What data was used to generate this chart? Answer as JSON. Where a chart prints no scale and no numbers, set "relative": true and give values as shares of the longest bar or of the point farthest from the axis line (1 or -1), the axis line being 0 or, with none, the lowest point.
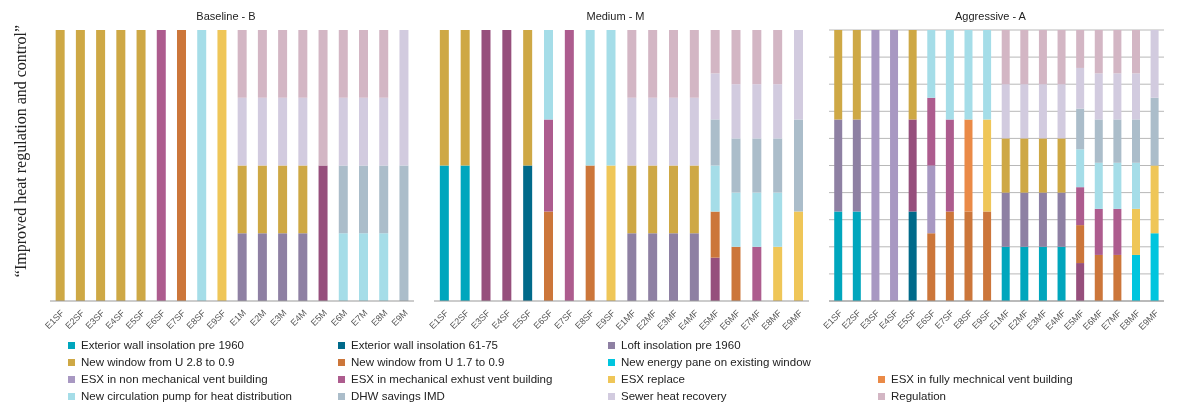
{
  "chart_data": [
    {
      "type": "bar",
      "title": "Baseline - B",
      "ylabel": "“Improved heat regulation and control”",
      "relative": true,
      "stacked": true,
      "grid": false,
      "categories": [
        "E1SF",
        "E2SF",
        "E3SF",
        "E4SF",
        "E5SF",
        "E6SF",
        "E7SF",
        "E8SF",
        "E9SF",
        "E1M",
        "E2M",
        "E3M",
        "E4M",
        "E5M",
        "E6M",
        "E7M",
        "E8M",
        "E9M"
      ],
      "series": [
        {
          "color": "#964f7c",
          "values": [
            null,
            null,
            null,
            null,
            null,
            null,
            null,
            null,
            null,
            null,
            null,
            null,
            null,
            0.5,
            null,
            null,
            null,
            null
          ]
        },
        {
          "color": "#8e80a3",
          "values": [
            null,
            null,
            null,
            null,
            null,
            null,
            null,
            null,
            null,
            0.25,
            0.25,
            0.25,
            0.25,
            null,
            null,
            null,
            null,
            null
          ]
        },
        {
          "color": "#cea845",
          "values": [
            1,
            1,
            1,
            1,
            1,
            null,
            null,
            null,
            null,
            0.25,
            0.25,
            0.25,
            0.25,
            null,
            null,
            null,
            null,
            null
          ]
        },
        {
          "color": "#cc763a",
          "values": [
            null,
            null,
            null,
            null,
            null,
            null,
            1,
            null,
            null,
            null,
            null,
            null,
            null,
            null,
            null,
            null,
            null,
            null
          ]
        },
        {
          "color": "#ad5c8e",
          "values": [
            null,
            null,
            null,
            null,
            null,
            1,
            null,
            null,
            null,
            null,
            null,
            null,
            null,
            null,
            null,
            null,
            null,
            null
          ]
        },
        {
          "color": "#efc658",
          "values": [
            null,
            null,
            null,
            null,
            null,
            null,
            null,
            null,
            1,
            null,
            null,
            null,
            null,
            null,
            null,
            null,
            null,
            null
          ]
        },
        {
          "color": "#a5dde8",
          "values": [
            null,
            null,
            null,
            null,
            null,
            null,
            null,
            1,
            null,
            null,
            null,
            null,
            null,
            null,
            0.25,
            0.25,
            0.25,
            null
          ]
        },
        {
          "color": "#abbdca",
          "values": [
            null,
            null,
            null,
            null,
            null,
            null,
            null,
            null,
            null,
            null,
            null,
            null,
            null,
            null,
            0.25,
            0.25,
            0.25,
            0.5
          ]
        },
        {
          "color": "#d2cbdf",
          "values": [
            null,
            null,
            null,
            null,
            null,
            null,
            null,
            null,
            null,
            0.25,
            0.25,
            0.25,
            0.25,
            null,
            0.25,
            0.25,
            0.25,
            0.5
          ]
        },
        {
          "color": "#d3b6c4",
          "values": [
            null,
            null,
            null,
            null,
            null,
            null,
            null,
            null,
            null,
            0.25,
            0.25,
            0.25,
            0.25,
            0.5,
            0.25,
            0.25,
            0.25,
            null
          ]
        }
      ]
    },
    {
      "type": "bar",
      "title": "Medium - M",
      "relative": true,
      "stacked": true,
      "grid": false,
      "categories": [
        "E1SF",
        "E2SF",
        "E3SF",
        "E4SF",
        "E5SF",
        "E6SF",
        "E7SF",
        "E8SF",
        "E9SF",
        "E1MF",
        "E2MF",
        "E3MF",
        "E4MF",
        "E5MF",
        "E6MF",
        "E7MF",
        "E8MF",
        "E9MF"
      ],
      "series": [
        {
          "color": "#00a6bd",
          "values": [
            0.5,
            0.5,
            null,
            null,
            null,
            null,
            null,
            null,
            null,
            null,
            null,
            null,
            null,
            null,
            null,
            null,
            null,
            null
          ]
        },
        {
          "color": "#006a8a",
          "values": [
            null,
            null,
            null,
            null,
            0.5,
            null,
            null,
            null,
            null,
            null,
            null,
            null,
            null,
            null,
            null,
            null,
            null,
            null
          ]
        },
        {
          "color": "#964f7c",
          "values": [
            null,
            null,
            1,
            1,
            null,
            null,
            null,
            null,
            null,
            null,
            null,
            null,
            null,
            0.16,
            null,
            null,
            null,
            null
          ]
        },
        {
          "color": "#8e80a3",
          "values": [
            null,
            null,
            null,
            null,
            null,
            null,
            null,
            null,
            null,
            0.25,
            0.25,
            0.25,
            0.25,
            null,
            null,
            null,
            null,
            null
          ]
        },
        {
          "color": "#cea845",
          "values": [
            0.5,
            0.5,
            null,
            null,
            0.5,
            null,
            null,
            null,
            null,
            0.25,
            0.25,
            0.25,
            0.25,
            null,
            null,
            null,
            null,
            null
          ]
        },
        {
          "color": "#cc763a",
          "values": [
            null,
            null,
            null,
            null,
            null,
            0.33,
            null,
            0.5,
            null,
            null,
            null,
            null,
            null,
            0.17,
            0.2,
            null,
            null,
            null
          ]
        },
        {
          "color": "#ad5c8e",
          "values": [
            null,
            null,
            null,
            null,
            null,
            0.34,
            1,
            null,
            null,
            null,
            null,
            null,
            null,
            null,
            null,
            0.2,
            null,
            null
          ]
        },
        {
          "color": "#efc658",
          "values": [
            null,
            null,
            null,
            null,
            null,
            null,
            null,
            null,
            0.5,
            null,
            null,
            null,
            null,
            null,
            null,
            null,
            0.2,
            0.33
          ]
        },
        {
          "color": "#a5dde8",
          "values": [
            null,
            null,
            null,
            null,
            null,
            0.33,
            null,
            0.5,
            0.5,
            null,
            null,
            null,
            null,
            0.17,
            0.2,
            0.2,
            0.2,
            null
          ]
        },
        {
          "color": "#abbdca",
          "values": [
            null,
            null,
            null,
            null,
            null,
            null,
            null,
            null,
            null,
            null,
            null,
            null,
            null,
            0.17,
            0.2,
            0.2,
            0.2,
            0.34
          ]
        },
        {
          "color": "#d2cbdf",
          "values": [
            null,
            null,
            null,
            null,
            null,
            null,
            null,
            null,
            null,
            0.25,
            0.25,
            0.25,
            0.25,
            0.17,
            0.2,
            0.2,
            0.2,
            0.33
          ]
        },
        {
          "color": "#d3b6c4",
          "values": [
            null,
            null,
            null,
            null,
            null,
            null,
            null,
            null,
            null,
            0.25,
            0.25,
            0.25,
            0.25,
            0.16,
            0.2,
            0.2,
            0.2,
            null
          ]
        }
      ]
    },
    {
      "type": "bar",
      "title": "Aggressive - A",
      "relative": true,
      "stacked": true,
      "grid": "y",
      "legend": "bottom",
      "categories": [
        "E1SF",
        "E2SF",
        "E3SF",
        "E4SF",
        "E5SF",
        "E6SF",
        "E7SF",
        "E8SF",
        "E9SF",
        "E1MF",
        "E2MF",
        "E3MF",
        "E4MF",
        "E5MF",
        "E6MF",
        "E7MF",
        "E8MF",
        "E9MF"
      ],
      "series": [
        {
          "name": "Exterior wall insolation pre 1960",
          "color": "#00a6bd",
          "values": [
            0.33,
            0.33,
            null,
            null,
            null,
            null,
            null,
            null,
            null,
            0.2,
            0.2,
            0.2,
            0.2,
            null,
            null,
            null,
            null,
            null
          ]
        },
        {
          "name": "Exterior wall insolation  61-75",
          "color": "#006a8a",
          "values": [
            null,
            null,
            null,
            null,
            0.33,
            null,
            null,
            null,
            null,
            null,
            null,
            null,
            null,
            null,
            null,
            null,
            null,
            null
          ]
        },
        {
          "color": "#964f7c",
          "values": [
            null,
            null,
            null,
            null,
            0.34,
            null,
            null,
            null,
            null,
            null,
            null,
            null,
            null,
            0.14,
            null,
            null,
            null,
            null
          ]
        },
        {
          "name": "Loft insolation pre 1960",
          "color": "#8e80a3",
          "values": [
            0.34,
            0.34,
            null,
            null,
            null,
            null,
            null,
            null,
            null,
            0.2,
            0.2,
            0.2,
            0.2,
            null,
            null,
            null,
            null,
            null
          ]
        },
        {
          "name": "New window from U 2.8 to 0.9",
          "color": "#cea845",
          "values": [
            0.33,
            0.33,
            null,
            null,
            0.33,
            null,
            null,
            null,
            null,
            0.2,
            0.2,
            0.2,
            0.2,
            null,
            null,
            null,
            null,
            null
          ]
        },
        {
          "name": "New window from U 1.7 to 0.9",
          "color": "#cc763a",
          "values": [
            null,
            null,
            null,
            null,
            null,
            0.25,
            0.33,
            0.33,
            0.33,
            null,
            null,
            null,
            null,
            0.14,
            0.17,
            0.17,
            null,
            null
          ]
        },
        {
          "name": "New energy pane on existing window",
          "color": "#00c5de",
          "values": [
            null,
            null,
            null,
            null,
            null,
            null,
            null,
            null,
            null,
            null,
            null,
            null,
            null,
            null,
            null,
            null,
            0.17,
            0.25
          ]
        },
        {
          "name": "ESX in non mechanical vent building",
          "color": "#a898c2",
          "values": [
            null,
            null,
            1,
            1,
            null,
            0.25,
            null,
            null,
            null,
            null,
            null,
            null,
            null,
            null,
            null,
            null,
            null,
            null
          ]
        },
        {
          "name": "ESX in mechanical exhust vent building",
          "color": "#ad5c8e",
          "values": [
            null,
            null,
            null,
            null,
            null,
            0.25,
            0.34,
            null,
            null,
            null,
            null,
            null,
            null,
            0.14,
            0.17,
            0.17,
            null,
            null
          ]
        },
        {
          "name": "ESX replace",
          "color": "#efc658",
          "values": [
            null,
            null,
            null,
            null,
            null,
            null,
            null,
            null,
            0.34,
            null,
            null,
            null,
            null,
            null,
            null,
            null,
            0.17,
            0.25
          ]
        },
        {
          "name": "ESX in fully mechnical vent building",
          "color": "#ea8a47",
          "values": [
            null,
            null,
            null,
            null,
            null,
            null,
            null,
            0.34,
            null,
            null,
            null,
            null,
            null,
            null,
            null,
            null,
            null,
            null
          ]
        },
        {
          "name": "New circulation pump for heat distribution",
          "color": "#a5dde8",
          "values": [
            null,
            null,
            null,
            null,
            null,
            0.25,
            0.33,
            0.33,
            0.33,
            null,
            null,
            null,
            null,
            0.14,
            0.17,
            0.17,
            0.17,
            null
          ]
        },
        {
          "name": "DHW savings IMD",
          "color": "#abbdca",
          "values": [
            null,
            null,
            null,
            null,
            null,
            null,
            null,
            null,
            null,
            null,
            null,
            null,
            null,
            0.15,
            0.16,
            0.16,
            0.16,
            0.25
          ]
        },
        {
          "name": "Sewer heat recovery",
          "color": "#d2cbdf",
          "values": [
            null,
            null,
            null,
            null,
            null,
            null,
            null,
            null,
            null,
            0.2,
            0.2,
            0.2,
            0.2,
            0.15,
            0.17,
            0.17,
            0.17,
            0.25
          ]
        },
        {
          "name": "Regulation",
          "color": "#d3b6c4",
          "values": [
            null,
            null,
            null,
            null,
            null,
            null,
            null,
            null,
            null,
            0.2,
            0.2,
            0.2,
            0.2,
            0.14,
            0.16,
            0.16,
            0.16,
            null
          ]
        }
      ]
    }
  ]
}
